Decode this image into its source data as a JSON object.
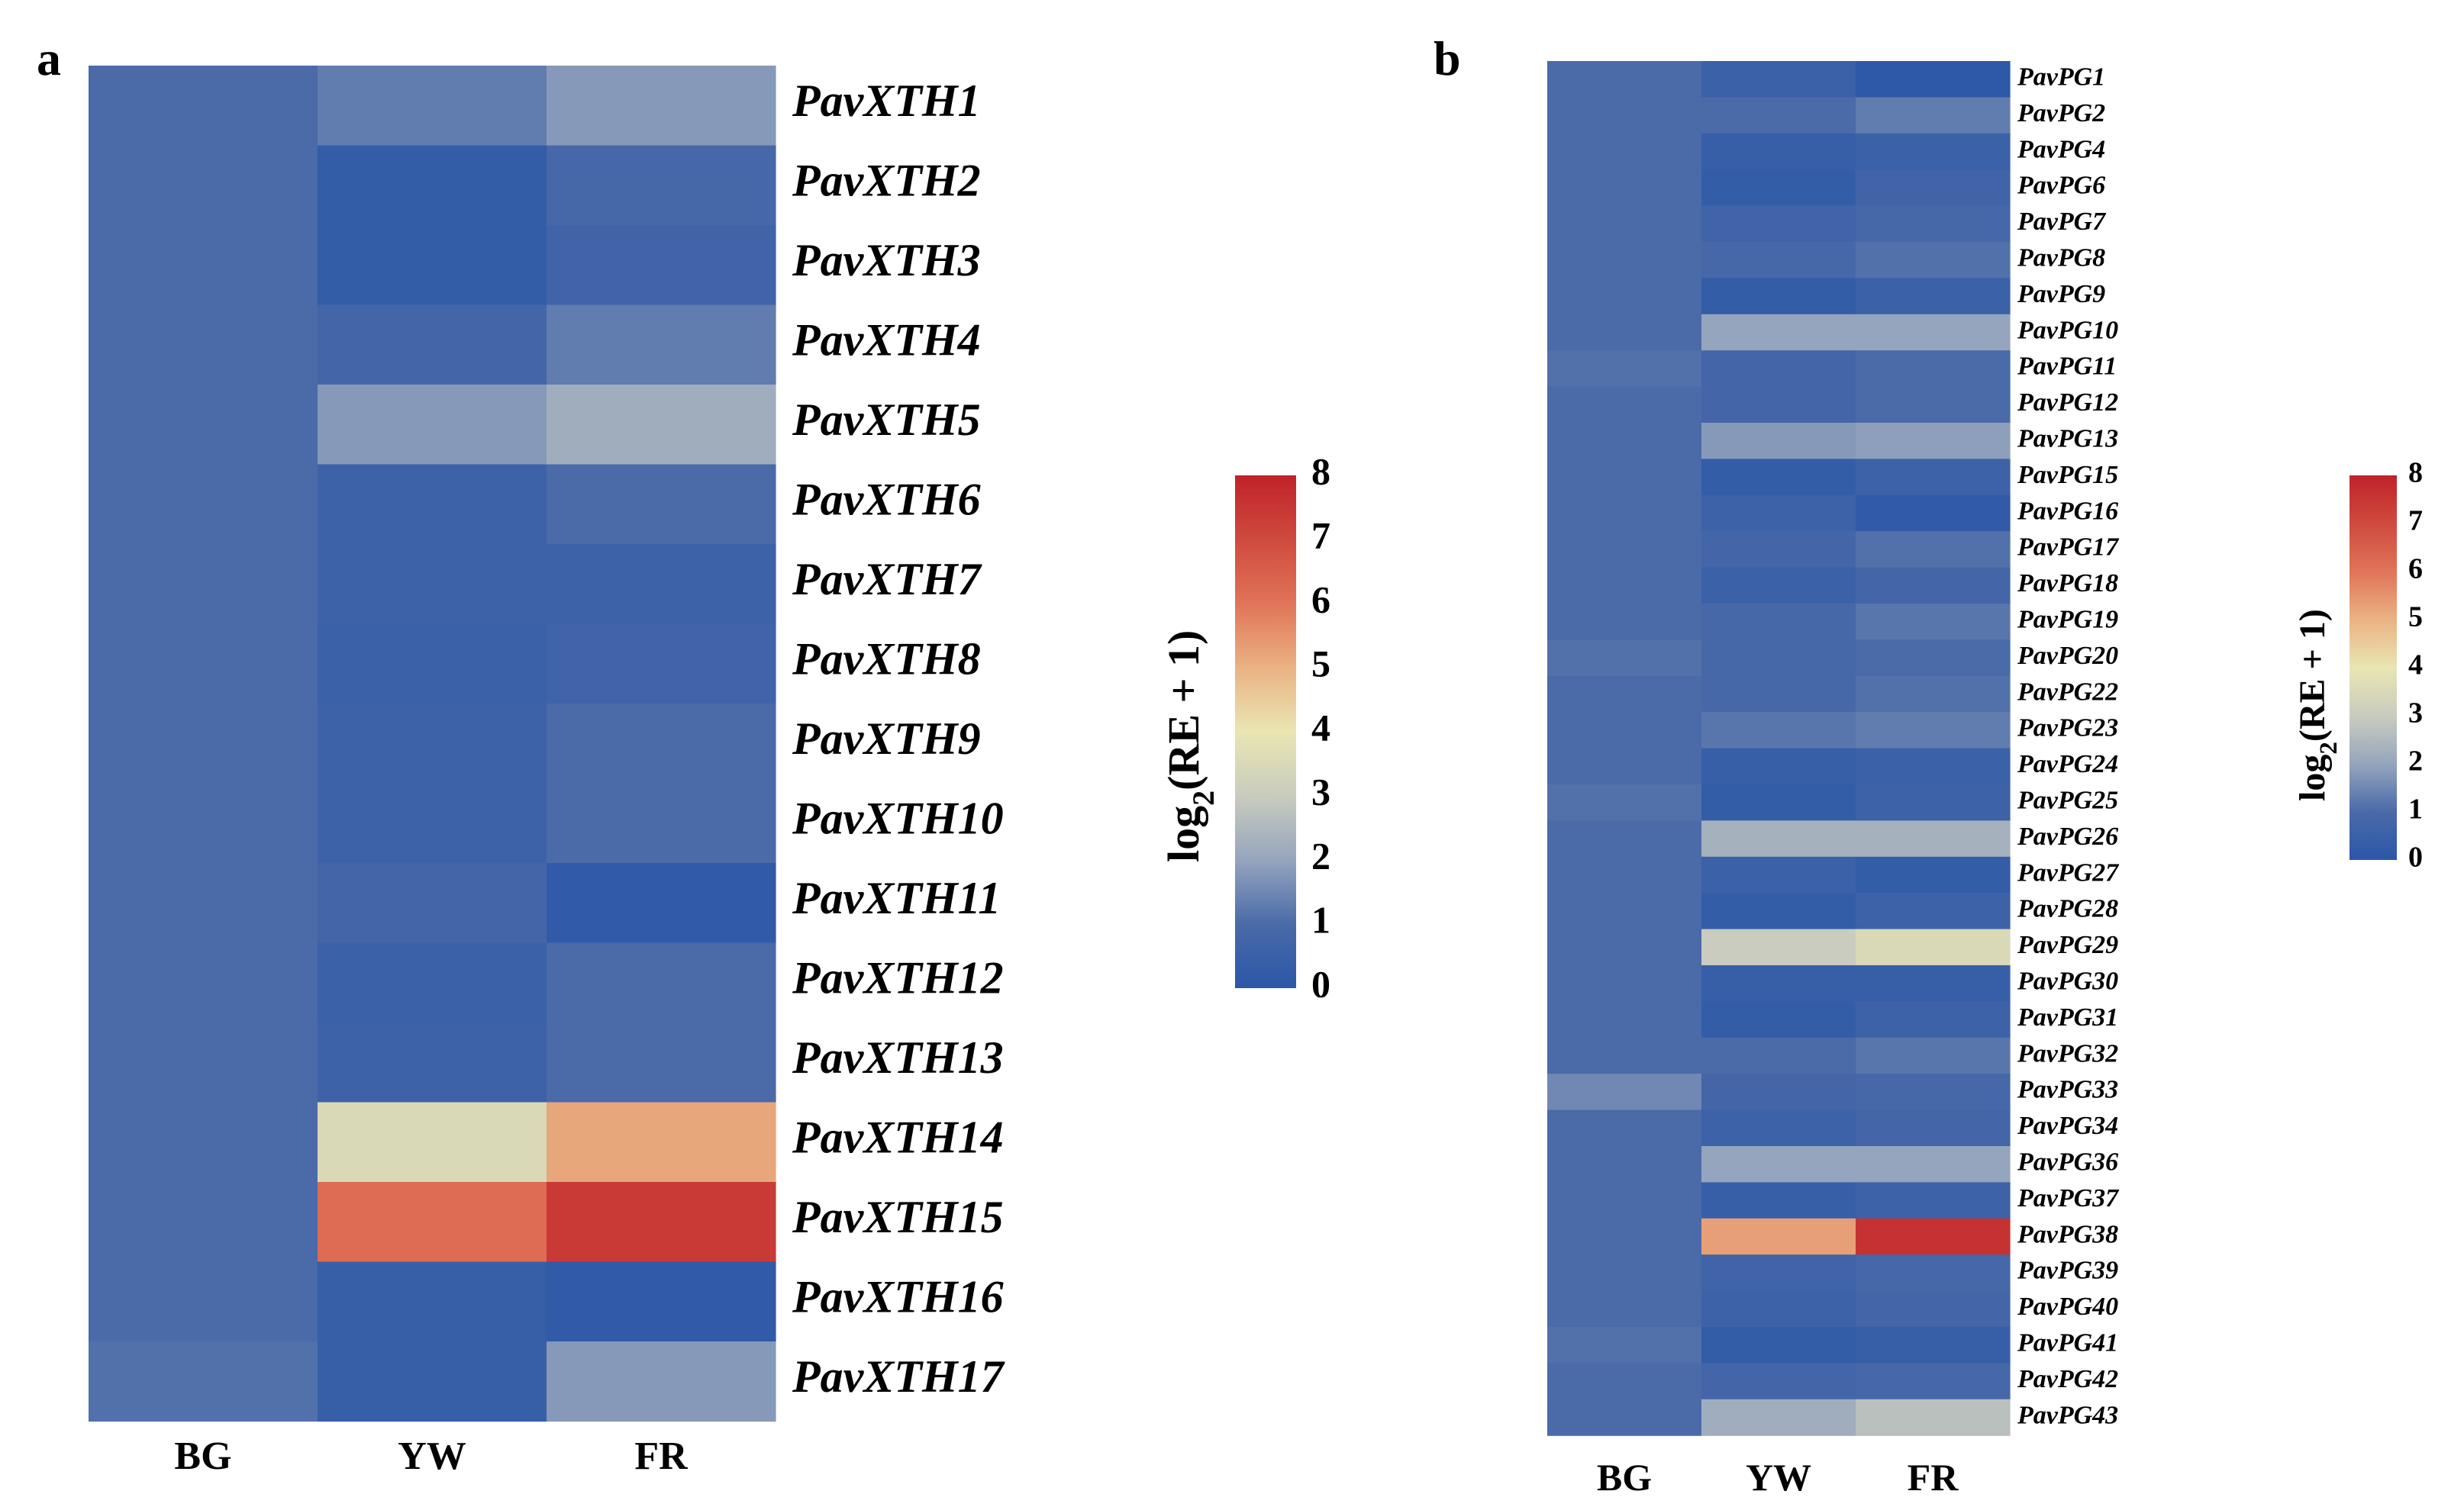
{
  "colors": {
    "low": "#2b57a8",
    "lowmid": "#6e88b3",
    "mid": "#a4b2bf",
    "midhigh": "#e9e6b2",
    "high": "#e38a63",
    "top": "#c32a2a"
  },
  "chart_data": [
    {
      "panel": "a",
      "type": "heatmap",
      "columns": [
        "BG",
        "YW",
        "FR"
      ],
      "rows": [
        "PavXTH1",
        "PavXTH2",
        "PavXTH3",
        "PavXTH4",
        "PavXTH5",
        "PavXTH6",
        "PavXTH7",
        "PavXTH8",
        "PavXTH9",
        "PavXTH10",
        "PavXTH11",
        "PavXTH12",
        "PavXTH13",
        "PavXTH14",
        "PavXTH15",
        "PavXTH16",
        "PavXTH17"
      ],
      "values": [
        [
          1.0,
          1.3,
          1.8
        ],
        [
          1.0,
          0.3,
          0.9
        ],
        [
          1.0,
          0.3,
          0.7
        ],
        [
          1.0,
          0.8,
          1.3
        ],
        [
          1.0,
          1.8,
          2.2
        ],
        [
          1.0,
          0.6,
          1.0
        ],
        [
          1.0,
          0.6,
          0.6
        ],
        [
          1.0,
          0.5,
          0.7
        ],
        [
          1.0,
          0.6,
          1.0
        ],
        [
          1.0,
          0.6,
          1.0
        ],
        [
          1.0,
          0.8,
          0.2
        ],
        [
          1.0,
          0.5,
          1.0
        ],
        [
          1.0,
          0.6,
          1.0
        ],
        [
          1.0,
          3.5,
          5.2
        ],
        [
          1.0,
          6.2,
          7.4
        ],
        [
          1.0,
          0.4,
          0.2
        ],
        [
          1.1,
          0.4,
          1.8
        ]
      ],
      "colorbar": {
        "min": 0,
        "max": 8,
        "ticks": [
          "0",
          "1",
          "2",
          "3",
          "4",
          "5",
          "6",
          "7",
          "8"
        ]
      },
      "colorbar_title": {
        "main": "log",
        "sub": "2",
        "rest": "(RE + 1)"
      }
    },
    {
      "panel": "b",
      "type": "heatmap",
      "columns": [
        "BG",
        "YW",
        "FR"
      ],
      "rows": [
        "PavPG1",
        "PavPG2",
        "PavPG4",
        "PavPG6",
        "PavPG7",
        "PavPG8",
        "PavPG9",
        "PavPG10",
        "PavPG11",
        "PavPG12",
        "PavPG13",
        "PavPG15",
        "PavPG16",
        "PavPG17",
        "PavPG18",
        "PavPG19",
        "PavPG20",
        "PavPG22",
        "PavPG23",
        "PavPG24",
        "PavPG25",
        "PavPG26",
        "PavPG27",
        "PavPG28",
        "PavPG29",
        "PavPG30",
        "PavPG31",
        "PavPG32",
        "PavPG33",
        "PavPG34",
        "PavPG36",
        "PavPG37",
        "PavPG38",
        "PavPG39",
        "PavPG40",
        "PavPG41",
        "PavPG42",
        "PavPG43"
      ],
      "values": [
        [
          1.0,
          0.5,
          0.1
        ],
        [
          1.0,
          1.0,
          1.3
        ],
        [
          1.0,
          0.4,
          0.5
        ],
        [
          1.0,
          0.3,
          0.7
        ],
        [
          1.0,
          0.7,
          0.9
        ],
        [
          1.0,
          0.9,
          1.1
        ],
        [
          1.0,
          0.3,
          0.5
        ],
        [
          1.0,
          2.0,
          2.0
        ],
        [
          1.1,
          0.8,
          1.0
        ],
        [
          1.0,
          0.8,
          1.0
        ],
        [
          1.0,
          1.8,
          1.9
        ],
        [
          1.0,
          0.3,
          0.6
        ],
        [
          1.0,
          0.6,
          0.2
        ],
        [
          1.0,
          0.8,
          1.1
        ],
        [
          1.0,
          0.5,
          0.8
        ],
        [
          1.0,
          0.9,
          1.2
        ],
        [
          1.1,
          0.9,
          1.0
        ],
        [
          1.0,
          0.9,
          1.1
        ],
        [
          1.0,
          1.2,
          1.3
        ],
        [
          1.0,
          0.4,
          0.5
        ],
        [
          1.1,
          0.3,
          0.6
        ],
        [
          1.0,
          2.3,
          2.3
        ],
        [
          1.0,
          0.5,
          0.3
        ],
        [
          1.0,
          0.3,
          0.6
        ],
        [
          1.0,
          3.0,
          3.5
        ],
        [
          1.0,
          0.4,
          0.4
        ],
        [
          1.0,
          0.3,
          0.6
        ],
        [
          1.0,
          1.0,
          1.2
        ],
        [
          1.5,
          0.8,
          0.9
        ],
        [
          1.0,
          0.6,
          0.8
        ],
        [
          1.0,
          2.0,
          2.0
        ],
        [
          1.0,
          0.4,
          0.6
        ],
        [
          1.0,
          5.3,
          7.6
        ],
        [
          1.0,
          0.7,
          0.9
        ],
        [
          1.0,
          0.6,
          0.8
        ],
        [
          1.1,
          0.3,
          0.4
        ],
        [
          1.0,
          0.8,
          0.9
        ],
        [
          1.0,
          2.2,
          2.7
        ]
      ],
      "colorbar": {
        "min": 0,
        "max": 8,
        "ticks": [
          "0",
          "1",
          "2",
          "3",
          "4",
          "5",
          "6",
          "7",
          "8"
        ]
      },
      "colorbar_title": {
        "main": "log",
        "sub": "2",
        "rest": "(RE + 1)"
      }
    }
  ]
}
